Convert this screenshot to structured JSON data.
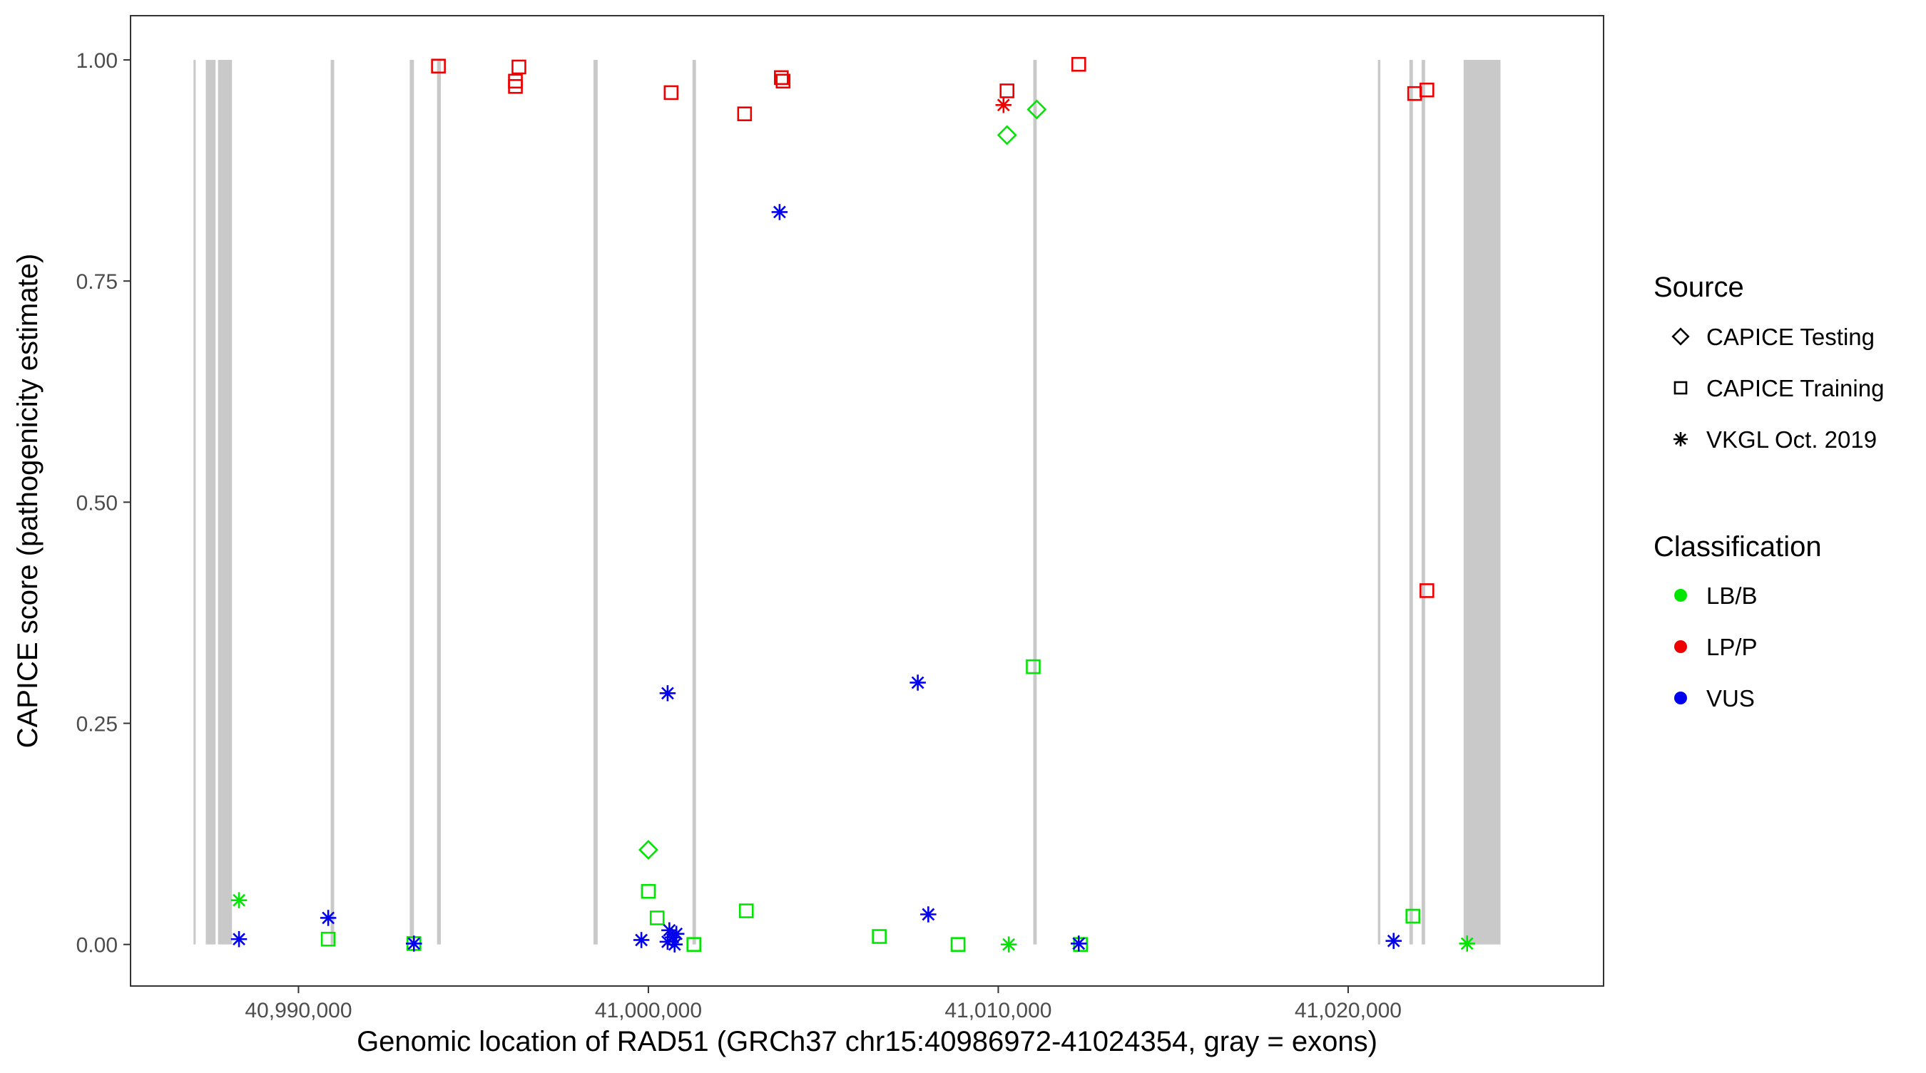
{
  "chart_data": {
    "type": "scatter",
    "xlabel": "Genomic location of RAD51 (GRCh37 chr15:40986972-41024354, gray = exons)",
    "ylabel": "CAPICE score (pathogenicity estimate)",
    "xlim": [
      40985200,
      41027300
    ],
    "ylim": [
      -0.047,
      1.05
    ],
    "x_ticks": [
      40990000,
      41000000,
      41010000,
      41020000
    ],
    "x_tick_labels": [
      "40,990,000",
      "41,000,000",
      "41,010,000",
      "41,020,000"
    ],
    "y_ticks": [
      0,
      0.25,
      0.5,
      0.75,
      1.0
    ],
    "y_tick_labels": [
      "0.00",
      "0.25",
      "0.50",
      "0.75",
      "1.00"
    ],
    "grid": false,
    "legend_placement": "right",
    "exons": [
      [
        40987000,
        40987040
      ],
      [
        40987350,
        40987630
      ],
      [
        40987700,
        40988100
      ],
      [
        40990920,
        40991020
      ],
      [
        40993180,
        40993300
      ],
      [
        40993960,
        40994070
      ],
      [
        40998430,
        40998550
      ],
      [
        41001260,
        41001360
      ],
      [
        41011000,
        41011100
      ],
      [
        41020850,
        41020920
      ],
      [
        41021750,
        41021850
      ],
      [
        41022100,
        41022200
      ],
      [
        41023300,
        41024354
      ]
    ],
    "colors": {
      "LB/B": "#00e600",
      "LP/P": "#ee0000",
      "VUS": "#0000ee",
      "exon": "#c9c9c9"
    },
    "legend": {
      "source_title": "Source",
      "source_items": [
        {
          "label": "CAPICE Testing",
          "shape": "diamond"
        },
        {
          "label": "CAPICE Training",
          "shape": "square"
        },
        {
          "label": "VKGL Oct. 2019",
          "shape": "asterisk"
        }
      ],
      "class_title": "Classification",
      "class_items": [
        {
          "label": "LB/B",
          "color": "#00e600"
        },
        {
          "label": "LP/P",
          "color": "#ee0000"
        },
        {
          "label": "VUS",
          "color": "#0000ee"
        }
      ]
    },
    "points": [
      {
        "x": 40994000,
        "y": 0.993,
        "source": "CAPICE Training",
        "class": "LP/P"
      },
      {
        "x": 40996300,
        "y": 0.992,
        "source": "CAPICE Training",
        "class": "LP/P"
      },
      {
        "x": 40996200,
        "y": 0.976,
        "source": "CAPICE Training",
        "class": "LP/P"
      },
      {
        "x": 40996200,
        "y": 0.97,
        "source": "CAPICE Training",
        "class": "LP/P"
      },
      {
        "x": 41000650,
        "y": 0.963,
        "source": "CAPICE Training",
        "class": "LP/P"
      },
      {
        "x": 41002750,
        "y": 0.939,
        "source": "CAPICE Training",
        "class": "LP/P"
      },
      {
        "x": 41003800,
        "y": 0.98,
        "source": "CAPICE Training",
        "class": "LP/P"
      },
      {
        "x": 41003850,
        "y": 0.976,
        "source": "CAPICE Training",
        "class": "LP/P"
      },
      {
        "x": 41010250,
        "y": 0.965,
        "source": "CAPICE Training",
        "class": "LP/P"
      },
      {
        "x": 41012300,
        "y": 0.995,
        "source": "CAPICE Training",
        "class": "LP/P"
      },
      {
        "x": 41021900,
        "y": 0.962,
        "source": "CAPICE Training",
        "class": "LP/P"
      },
      {
        "x": 41022250,
        "y": 0.966,
        "source": "CAPICE Training",
        "class": "LP/P"
      },
      {
        "x": 41022250,
        "y": 0.4,
        "source": "CAPICE Training",
        "class": "LP/P"
      },
      {
        "x": 41010150,
        "y": 0.949,
        "source": "VKGL Oct. 2019",
        "class": "LP/P"
      },
      {
        "x": 41011100,
        "y": 0.944,
        "source": "CAPICE Testing",
        "class": "LB/B"
      },
      {
        "x": 41010250,
        "y": 0.915,
        "source": "CAPICE Testing",
        "class": "LB/B"
      },
      {
        "x": 41000000,
        "y": 0.107,
        "source": "CAPICE Testing",
        "class": "LB/B"
      },
      {
        "x": 41011000,
        "y": 0.314,
        "source": "CAPICE Training",
        "class": "LB/B"
      },
      {
        "x": 40990850,
        "y": 0.006,
        "source": "CAPICE Training",
        "class": "LB/B"
      },
      {
        "x": 40993300,
        "y": 0.001,
        "source": "CAPICE Training",
        "class": "LB/B"
      },
      {
        "x": 41000000,
        "y": 0.06,
        "source": "CAPICE Training",
        "class": "LB/B"
      },
      {
        "x": 41000250,
        "y": 0.03,
        "source": "CAPICE Training",
        "class": "LB/B"
      },
      {
        "x": 41001300,
        "y": 0.0,
        "source": "CAPICE Training",
        "class": "LB/B"
      },
      {
        "x": 41002800,
        "y": 0.038,
        "source": "CAPICE Training",
        "class": "LB/B"
      },
      {
        "x": 41006600,
        "y": 0.009,
        "source": "CAPICE Training",
        "class": "LB/B"
      },
      {
        "x": 41008850,
        "y": 0.0,
        "source": "CAPICE Training",
        "class": "LB/B"
      },
      {
        "x": 41012350,
        "y": 0.0,
        "source": "CAPICE Training",
        "class": "LB/B"
      },
      {
        "x": 41021850,
        "y": 0.032,
        "source": "CAPICE Training",
        "class": "LB/B"
      },
      {
        "x": 40988300,
        "y": 0.05,
        "source": "VKGL Oct. 2019",
        "class": "LB/B"
      },
      {
        "x": 41010300,
        "y": 0.0,
        "source": "VKGL Oct. 2019",
        "class": "LB/B"
      },
      {
        "x": 41023400,
        "y": 0.001,
        "source": "VKGL Oct. 2019",
        "class": "LB/B"
      },
      {
        "x": 41003750,
        "y": 0.828,
        "source": "VKGL Oct. 2019",
        "class": "VUS"
      },
      {
        "x": 41000550,
        "y": 0.284,
        "source": "VKGL Oct. 2019",
        "class": "VUS"
      },
      {
        "x": 41007700,
        "y": 0.296,
        "source": "VKGL Oct. 2019",
        "class": "VUS"
      },
      {
        "x": 41008000,
        "y": 0.034,
        "source": "VKGL Oct. 2019",
        "class": "VUS"
      },
      {
        "x": 40988300,
        "y": 0.006,
        "source": "VKGL Oct. 2019",
        "class": "VUS"
      },
      {
        "x": 40990850,
        "y": 0.03,
        "source": "VKGL Oct. 2019",
        "class": "VUS"
      },
      {
        "x": 40993300,
        "y": 0.001,
        "source": "VKGL Oct. 2019",
        "class": "VUS"
      },
      {
        "x": 40999800,
        "y": 0.005,
        "source": "VKGL Oct. 2019",
        "class": "VUS"
      },
      {
        "x": 41000600,
        "y": 0.016,
        "source": "VKGL Oct. 2019",
        "class": "VUS"
      },
      {
        "x": 41000700,
        "y": 0.008,
        "source": "VKGL Oct. 2019",
        "class": "VUS"
      },
      {
        "x": 41000550,
        "y": 0.003,
        "source": "VKGL Oct. 2019",
        "class": "VUS"
      },
      {
        "x": 41000750,
        "y": 0.0,
        "source": "VKGL Oct. 2019",
        "class": "VUS"
      },
      {
        "x": 41000800,
        "y": 0.012,
        "source": "VKGL Oct. 2019",
        "class": "VUS"
      },
      {
        "x": 41012300,
        "y": 0.001,
        "source": "VKGL Oct. 2019",
        "class": "VUS"
      },
      {
        "x": 41021300,
        "y": 0.004,
        "source": "VKGL Oct. 2019",
        "class": "VUS"
      }
    ]
  }
}
